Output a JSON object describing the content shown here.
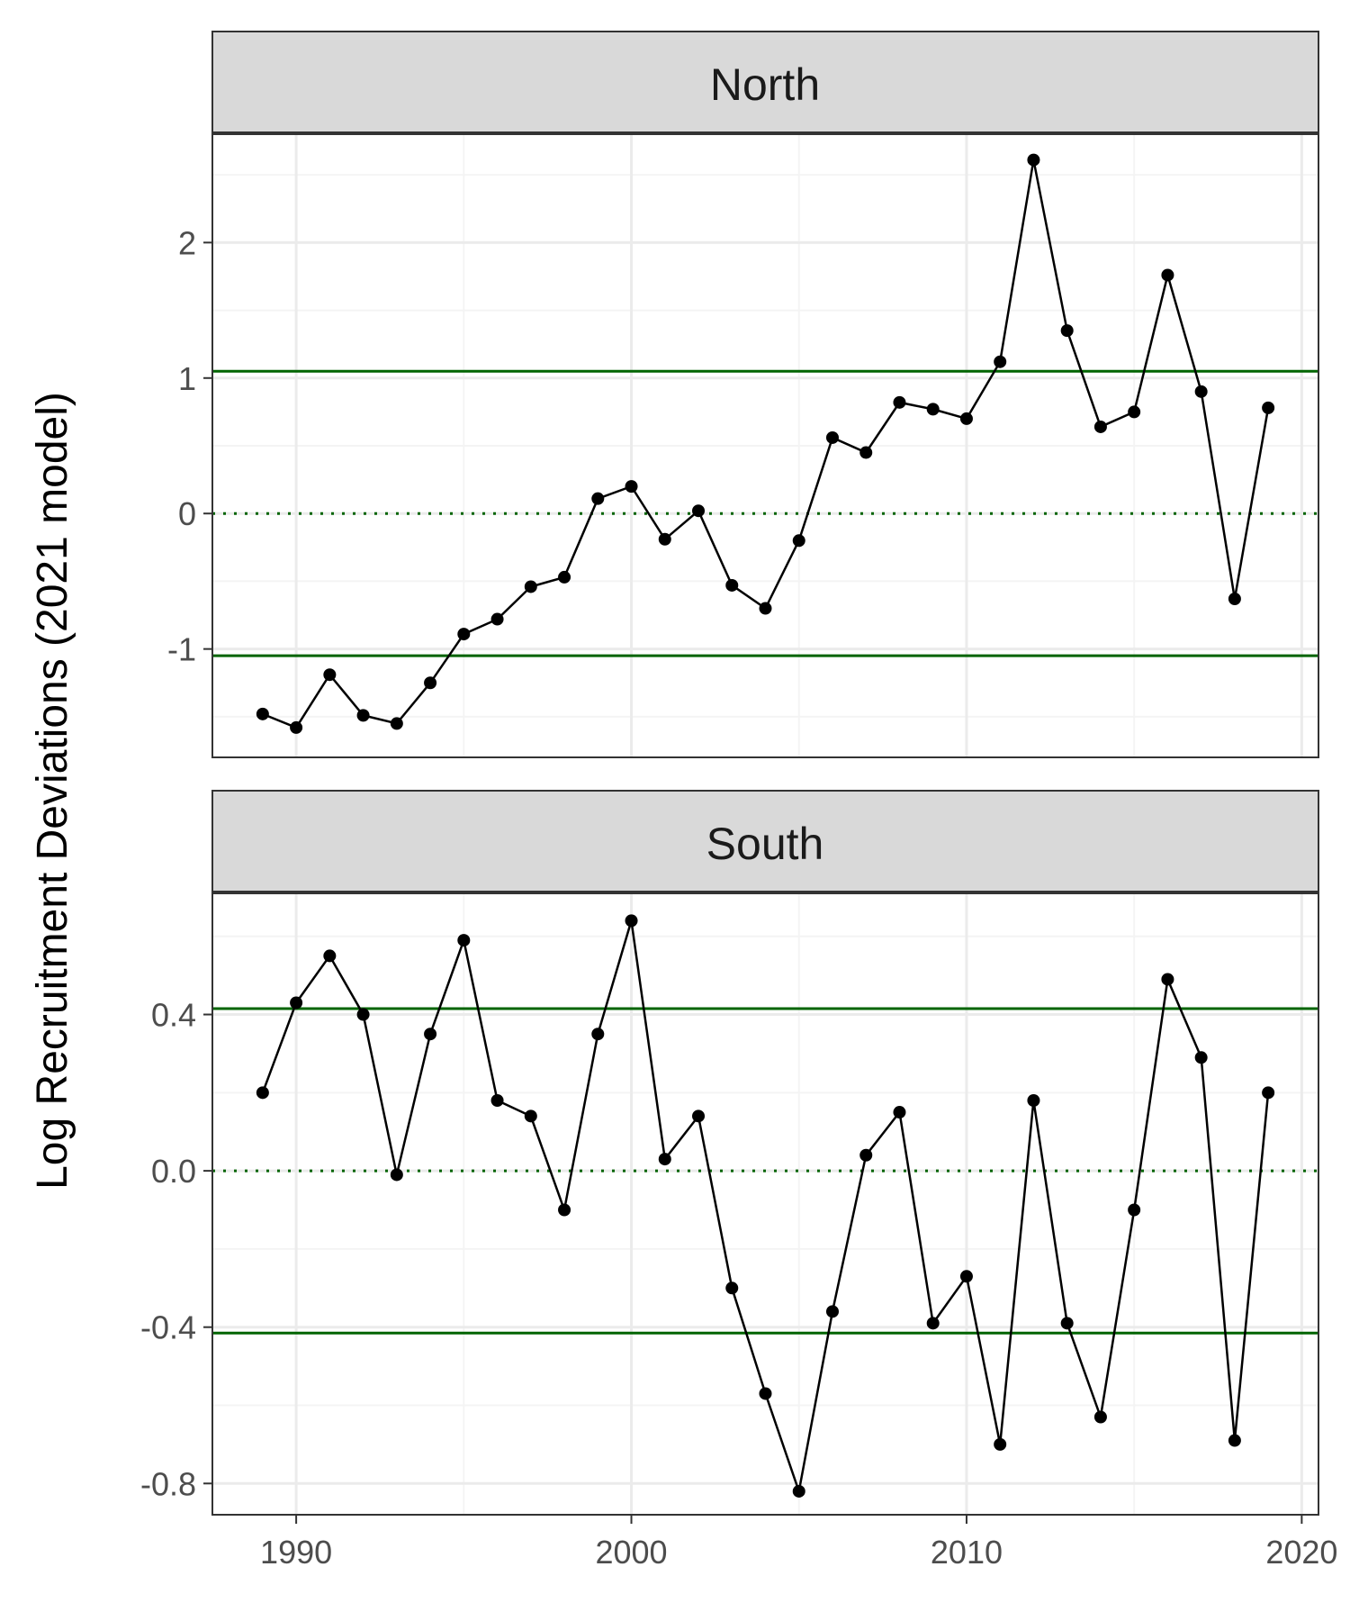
{
  "figure": {
    "ylabel": "Log Recruitment Deviations (2021 model)",
    "xlabel": ""
  },
  "colors": {
    "panel_border": "#333333",
    "strip_fill": "#d9d9d9",
    "grid_major": "#ebebeb",
    "grid_minor": "#f4f4f4",
    "threshold_line": "#006400",
    "series": "#000000"
  },
  "chart_data": [
    {
      "type": "line",
      "panel": "North",
      "x": [
        1989,
        1990,
        1991,
        1992,
        1993,
        1994,
        1995,
        1996,
        1997,
        1998,
        1999,
        2000,
        2001,
        2002,
        2003,
        2004,
        2005,
        2006,
        2007,
        2008,
        2009,
        2010,
        2011,
        2012,
        2013,
        2014,
        2015,
        2016,
        2017,
        2018,
        2019
      ],
      "values": [
        -1.48,
        -1.58,
        -1.19,
        -1.49,
        -1.55,
        -1.25,
        -0.89,
        -0.78,
        -0.54,
        -0.47,
        0.11,
        0.2,
        -0.19,
        0.02,
        -0.53,
        -0.7,
        -0.2,
        0.56,
        0.45,
        0.82,
        0.77,
        0.7,
        1.12,
        2.61,
        1.35,
        0.64,
        0.75,
        1.76,
        0.9,
        -0.63,
        0.78
      ],
      "hlines_solid": [
        1.05,
        -1.05
      ],
      "hline_dotted": 0,
      "ylim": [
        -1.8,
        2.8
      ],
      "y_ticks": [
        -1,
        0,
        1,
        2
      ],
      "y_tick_labels": [
        "-1",
        "0",
        "1",
        "2"
      ],
      "grid": true
    },
    {
      "type": "line",
      "panel": "South",
      "x": [
        1989,
        1990,
        1991,
        1992,
        1993,
        1994,
        1995,
        1996,
        1997,
        1998,
        1999,
        2000,
        2001,
        2002,
        2003,
        2004,
        2005,
        2006,
        2007,
        2008,
        2009,
        2010,
        2011,
        2012,
        2013,
        2014,
        2015,
        2016,
        2017,
        2018,
        2019
      ],
      "values": [
        0.2,
        0.43,
        0.55,
        0.4,
        -0.01,
        0.35,
        0.59,
        0.18,
        0.14,
        -0.1,
        0.35,
        0.64,
        0.03,
        0.14,
        -0.3,
        -0.57,
        -0.82,
        -0.36,
        0.04,
        0.15,
        -0.39,
        -0.27,
        -0.7,
        0.18,
        -0.39,
        -0.63,
        -0.1,
        0.49,
        0.29,
        -0.69,
        0.2
      ],
      "hlines_solid": [
        0.415,
        -0.415
      ],
      "hline_dotted": 0,
      "ylim": [
        -0.88,
        0.71
      ],
      "y_ticks": [
        -0.8,
        -0.4,
        0.0,
        0.4
      ],
      "y_tick_labels": [
        "-0.8",
        "-0.4",
        "0.0",
        "0.4"
      ],
      "grid": true
    }
  ],
  "x_axis": {
    "xlim": [
      1987.5,
      2020.5
    ],
    "ticks": [
      1990,
      2000,
      2010,
      2020
    ],
    "tick_labels": [
      "1990",
      "2000",
      "2010",
      "2020"
    ]
  }
}
